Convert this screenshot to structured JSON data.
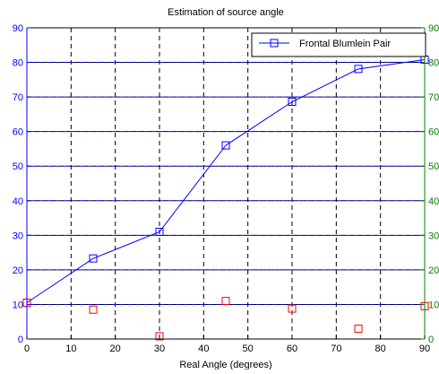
{
  "chart_data": {
    "type": "line",
    "title": "Estimation of source angle",
    "xlabel": "Real Angle (degrees)",
    "ylabel": "",
    "xlim": [
      0,
      90
    ],
    "ylim": [
      0,
      90
    ],
    "y2lim": [
      0,
      90
    ],
    "x_ticks": [
      0,
      10,
      20,
      30,
      40,
      50,
      60,
      70,
      80,
      90
    ],
    "y_ticks": [
      0,
      10,
      20,
      30,
      40,
      50,
      60,
      70,
      80,
      90
    ],
    "y2_ticks": [
      0,
      10,
      20,
      30,
      40,
      50,
      60,
      70,
      80,
      90
    ],
    "grid": true,
    "legend_position": "top-right",
    "series": [
      {
        "name": "Frontal Blumlein Pair",
        "axis": "left",
        "color": "#0000ff",
        "marker": "square",
        "line": true,
        "x": [
          0,
          15,
          30,
          45,
          60,
          75,
          90
        ],
        "y": [
          10.5,
          23.3,
          31,
          56,
          68.6,
          78.1,
          80.8
        ]
      },
      {
        "name": "",
        "axis": "right",
        "color": "#ff0000",
        "marker": "square",
        "line": false,
        "x": [
          0,
          15,
          30,
          45,
          60,
          75,
          90
        ],
        "y": [
          10.5,
          8.5,
          0.8,
          11,
          8.8,
          3,
          9.5
        ]
      }
    ],
    "colors": {
      "axis_left": "#0000ff",
      "axis_right": "#008000",
      "grid": "#000000",
      "grid_blue": "#0000ff",
      "frame": "#000000"
    }
  }
}
